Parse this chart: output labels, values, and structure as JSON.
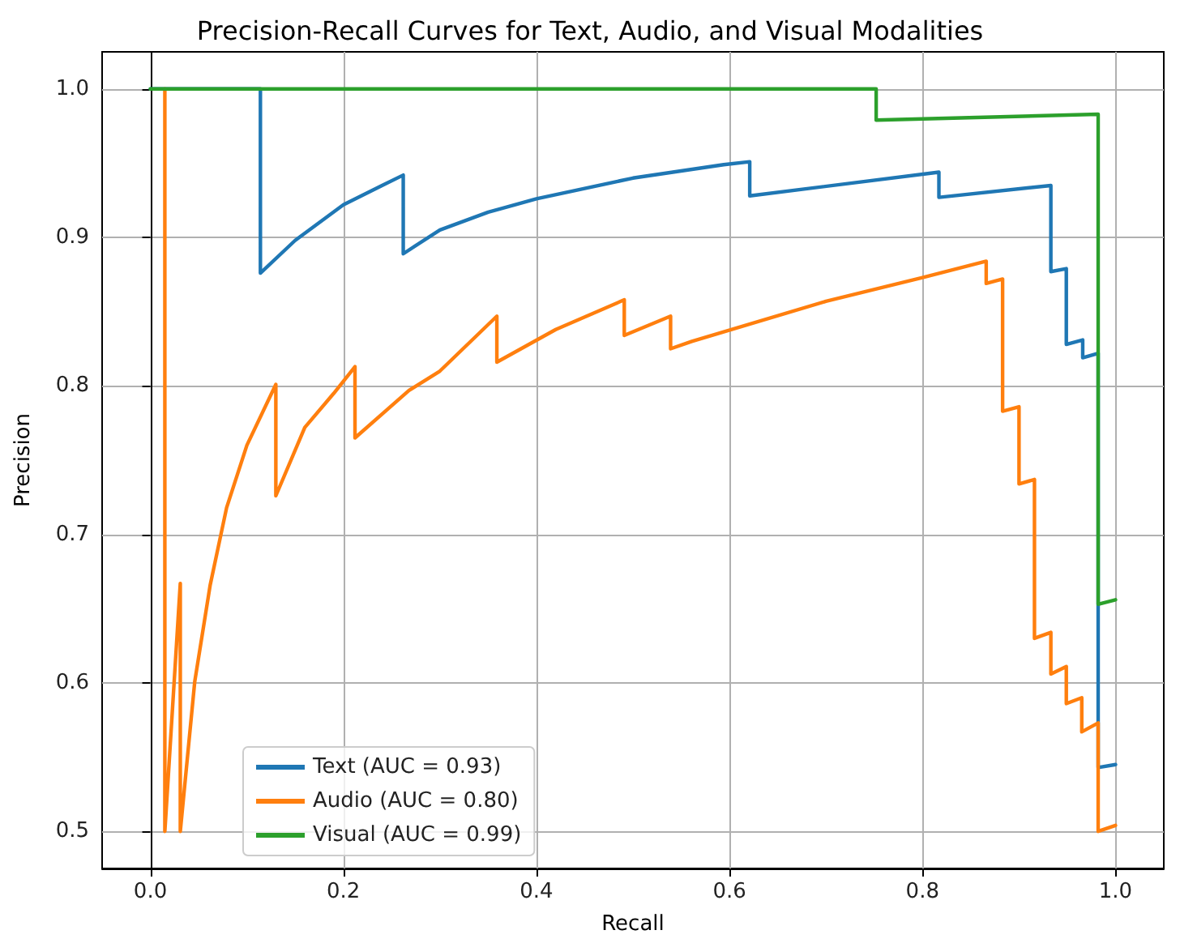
{
  "chart_data": {
    "type": "line",
    "title": "Precision-Recall Curves for Text, Audio, and Visual Modalities",
    "xlabel": "Recall",
    "ylabel": "Precision",
    "xlim": [
      -0.05,
      1.05
    ],
    "xticks": [
      {
        "value": 0,
        "label": "0.0"
      },
      {
        "value": 0.2,
        "label": "0.2"
      },
      {
        "value": 0.4,
        "label": "0.4"
      },
      {
        "value": 0.6,
        "label": "0.6"
      },
      {
        "value": 0.8,
        "label": "0.8"
      },
      {
        "value": 1.0,
        "label": "1.0"
      }
    ],
    "ylim": [
      0.475,
      1.025
    ],
    "yticks": [
      {
        "value": 0.5,
        "label": "0.5"
      },
      {
        "value": 0.6,
        "label": "0.6"
      },
      {
        "value": 0.7,
        "label": "0.7"
      },
      {
        "value": 0.8,
        "label": "0.8"
      },
      {
        "value": 0.9,
        "label": "0.9"
      },
      {
        "value": 1.0,
        "label": "1.0"
      }
    ],
    "grid": true,
    "legend": "bottom left",
    "marker": "none",
    "line_style": "solid",
    "series": [
      {
        "name": "Text (AUC = 0.93)",
        "color": "#1f77b4",
        "x": [
          0,
          0.114,
          0.114,
          0.15,
          0.2,
          0.24,
          0.262,
          0.262,
          0.3,
          0.35,
          0.4,
          0.5,
          0.594,
          0.621,
          0.621,
          0.817,
          0.817,
          0.933,
          0.933,
          0.949,
          0.949,
          0.966,
          0.966,
          0.982,
          0.982,
          1.0
        ],
        "values": [
          1.0,
          1.0,
          0.876,
          0.898,
          0.922,
          0.935,
          0.942,
          0.889,
          0.905,
          0.917,
          0.926,
          0.94,
          0.949,
          0.951,
          0.928,
          0.944,
          0.927,
          0.935,
          0.877,
          0.879,
          0.828,
          0.831,
          0.819,
          0.822,
          0.543,
          0.545
        ]
      },
      {
        "name": "Audio (AUC = 0.80)",
        "color": "#ff7f0e",
        "x": [
          0.015,
          0.015,
          0.031,
          0.031,
          0.046,
          0.062,
          0.079,
          0.1,
          0.13,
          0.13,
          0.16,
          0.19,
          0.212,
          0.212,
          0.268,
          0.3,
          0.359,
          0.359,
          0.42,
          0.491,
          0.491,
          0.539,
          0.539,
          0.561,
          0.7,
          0.8,
          0.866,
          0.866,
          0.883,
          0.883,
          0.9,
          0.9,
          0.916,
          0.916,
          0.933,
          0.933,
          0.949,
          0.949,
          0.965,
          0.965,
          0.982,
          0.982,
          1.0
        ],
        "values": [
          1.0,
          0.5,
          0.667,
          0.5,
          0.601,
          0.666,
          0.718,
          0.76,
          0.801,
          0.726,
          0.772,
          0.795,
          0.813,
          0.765,
          0.797,
          0.81,
          0.847,
          0.816,
          0.838,
          0.858,
          0.834,
          0.847,
          0.825,
          0.83,
          0.857,
          0.873,
          0.884,
          0.869,
          0.872,
          0.783,
          0.786,
          0.734,
          0.737,
          0.63,
          0.634,
          0.606,
          0.611,
          0.586,
          0.59,
          0.567,
          0.573,
          0.5,
          0.504
        ]
      },
      {
        "name": "Visual (AUC = 0.99)",
        "color": "#2ca02c",
        "x": [
          0,
          0.752,
          0.752,
          0.982,
          0.982,
          1.0
        ],
        "values": [
          1.0,
          1.0,
          0.979,
          0.983,
          0.653,
          0.656
        ]
      }
    ]
  }
}
